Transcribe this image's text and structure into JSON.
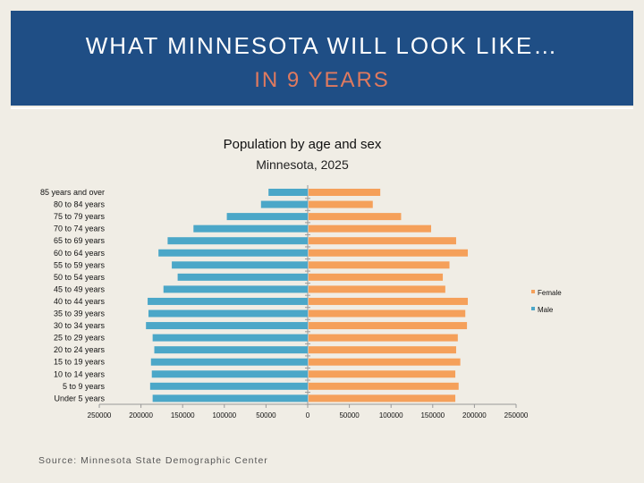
{
  "header": {
    "title_line1": "WHAT MINNESOTA WILL LOOK LIKE…",
    "title_line2": "IN 9 YEARS"
  },
  "source": "Source: Minnesota State Demographic Center",
  "colors": {
    "header_bg": "#1f4e85",
    "female": "#f5a05a",
    "male": "#4ba7c8",
    "accent_text": "#e07a5f"
  },
  "chart_data": {
    "type": "bar",
    "orientation": "horizontal-population-pyramid",
    "title": "Population by age and sex",
    "subtitle": "Minnesota, 2025",
    "categories": [
      "85 years and over",
      "80 to 84 years",
      "75 to 79 years",
      "70 to 74 years",
      "65 to 69 years",
      "60 to 64 years",
      "55 to 59 years",
      "50 to 54 years",
      "45 to 49 years",
      "40 to 44 years",
      "35 to 39 years",
      "30 to 34 years",
      "25 to 29 years",
      "20 to 24 years",
      "15 to 19 years",
      "10 to 14 years",
      "5 to 9 years",
      "Under 5 years"
    ],
    "series": [
      {
        "name": "Female",
        "values": [
          86000,
          77000,
          111000,
          147000,
          177000,
          191000,
          169000,
          161000,
          164000,
          191000,
          188000,
          190000,
          179000,
          177000,
          182000,
          176000,
          180000,
          176000
        ]
      },
      {
        "name": "Male",
        "values": [
          47000,
          56000,
          97000,
          137000,
          168000,
          179000,
          163000,
          156000,
          173000,
          192000,
          191000,
          194000,
          186000,
          184000,
          188000,
          187000,
          189000,
          186000
        ]
      }
    ],
    "xlim": [
      -250000,
      250000
    ],
    "xticks": [
      -250000,
      -200000,
      -150000,
      -100000,
      -50000,
      0,
      50000,
      100000,
      150000,
      200000,
      250000
    ],
    "xtick_labels": [
      "250000",
      "200000",
      "150000",
      "100000",
      "50000",
      "0",
      "50000",
      "100000",
      "150000",
      "200000",
      "250000"
    ],
    "legend": [
      "Female",
      "Male"
    ],
    "legend_position": "right",
    "grid": false
  }
}
